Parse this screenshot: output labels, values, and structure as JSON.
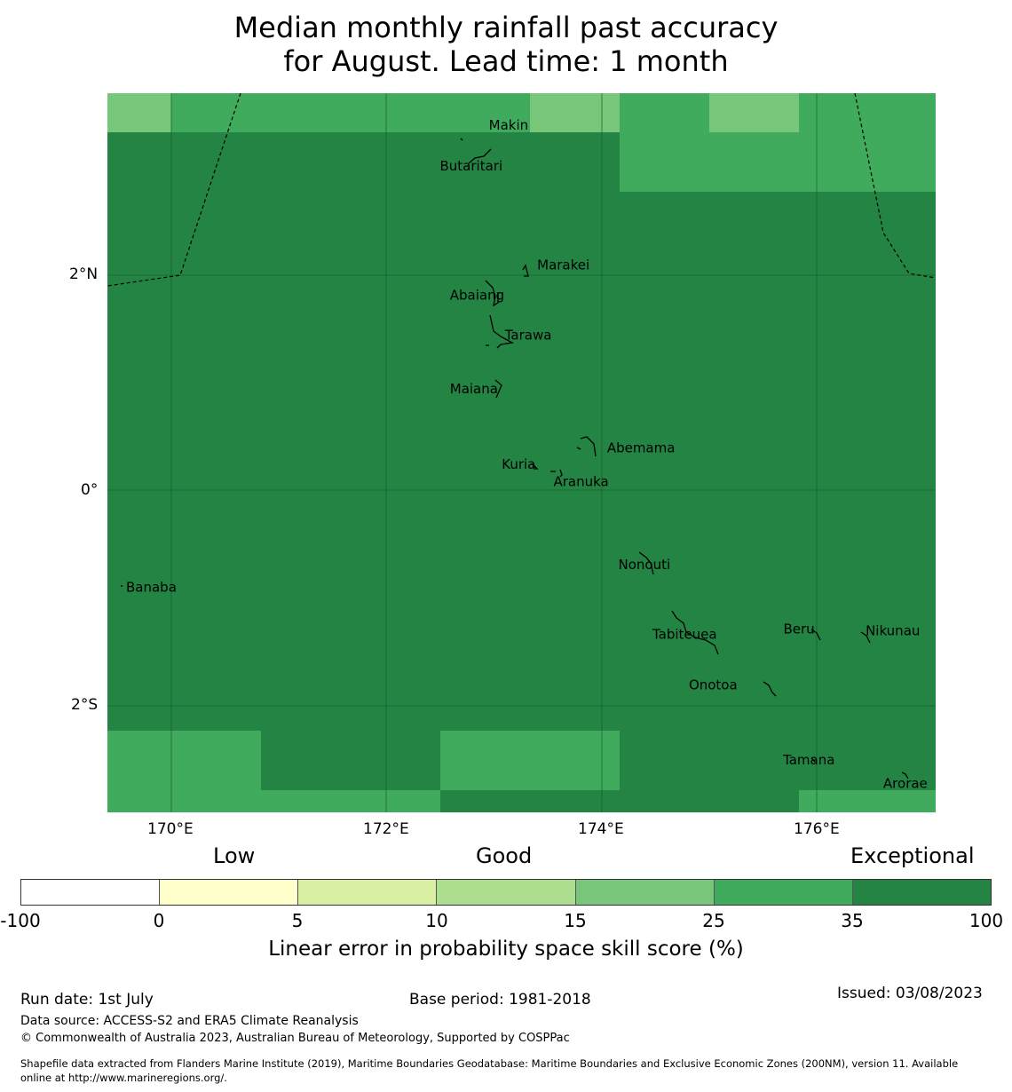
{
  "title_line1": "Median monthly rainfall past accuracy",
  "title_line2": "for August. Lead time: 1 month",
  "map": {
    "lon_ticks": [
      "170°E",
      "172°E",
      "174°E",
      "176°E"
    ],
    "lat_ticks": [
      "2°N",
      "0°",
      "2°S"
    ],
    "islands": [
      {
        "name": "Makin",
        "lon": 172.9,
        "lat": 3.35
      },
      {
        "name": "Butaritari",
        "lon": 172.8,
        "lat": 3.05
      },
      {
        "name": "Marakei",
        "lon": 173.3,
        "lat": 2.0
      },
      {
        "name": "Abaiang",
        "lon": 173.0,
        "lat": 1.85
      },
      {
        "name": "Tarawa",
        "lon": 173.0,
        "lat": 1.4
      },
      {
        "name": "Maiana",
        "lon": 173.0,
        "lat": 0.95
      },
      {
        "name": "Abemama",
        "lon": 173.85,
        "lat": 0.4
      },
      {
        "name": "Kuria",
        "lon": 173.4,
        "lat": 0.2
      },
      {
        "name": "Aranuka",
        "lon": 173.6,
        "lat": 0.17
      },
      {
        "name": "Nonouti",
        "lon": 174.4,
        "lat": -0.65
      },
      {
        "name": "Banaba",
        "lon": 169.53,
        "lat": -0.86
      },
      {
        "name": "Tabiteuea",
        "lon": 174.8,
        "lat": -1.3
      },
      {
        "name": "Beru",
        "lon": 176.0,
        "lat": -1.33
      },
      {
        "name": "Nikunau",
        "lon": 176.45,
        "lat": -1.35
      },
      {
        "name": "Onotoa",
        "lon": 175.55,
        "lat": -1.8
      },
      {
        "name": "Tamana",
        "lon": 175.98,
        "lat": -2.5
      },
      {
        "name": "Arorae",
        "lon": 176.82,
        "lat": -2.65
      }
    ],
    "skill_bins": [
      {
        "range": "25-35",
        "color": "#41ab5d"
      },
      {
        "range": "15-25",
        "color": "#78c679"
      },
      {
        "range": "35-100",
        "color": "#238443"
      }
    ]
  },
  "legend": {
    "labels": [
      "Low",
      "Good",
      "Exceptional"
    ],
    "ticks": [
      "-100",
      "0",
      "5",
      "10",
      "15",
      "25",
      "35",
      "100"
    ],
    "colors": [
      "#ffffff",
      "#ffffcc",
      "#d9f0a3",
      "#addd8e",
      "#78c679",
      "#41ab5d",
      "#238443"
    ],
    "title": "Linear error in probability space skill score (%)"
  },
  "footer": {
    "run_date": "Run date: 1st July",
    "base_period": "Base period: 1981-2018",
    "issued": "Issued: 03/08/2023",
    "source": "Data source: ACCESS-S2 and ERA5 Climate Reanalysis",
    "copyright": "© Commonwealth of Australia 2023, Australian Bureau of Meteorology, Supported by COSPPac",
    "shapefile_line1": "Shapefile data extracted from Flanders Marine Institute (2019), Maritime Boundaries Geodatabase: Maritime Boundaries and Exclusive Economic Zones (200NM), version 11. Available",
    "shapefile_line2": "online at http://www.marineregions.org/."
  }
}
